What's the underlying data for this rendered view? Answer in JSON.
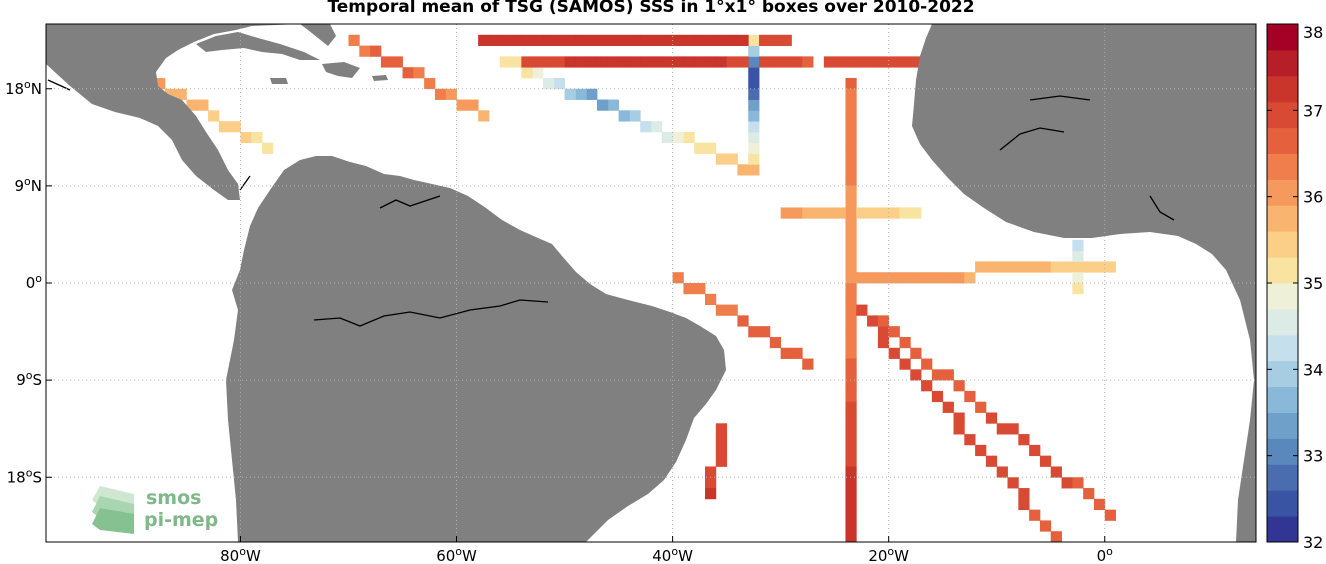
{
  "title": "Temporal mean of TSG (SAMOS) SSS in 1°x1° boxes over 2010-2022",
  "map": {
    "lon_range": [
      -98,
      14
    ],
    "lat_range": [
      -24,
      24
    ],
    "land_color": "#808080",
    "lon_ticks": [
      {
        "value": -80,
        "label": "80",
        "sup": "o",
        "suffix": "W"
      },
      {
        "value": -60,
        "label": "60",
        "sup": "o",
        "suffix": "W"
      },
      {
        "value": -40,
        "label": "40",
        "sup": "o",
        "suffix": "W"
      },
      {
        "value": -20,
        "label": "20",
        "sup": "o",
        "suffix": "W"
      },
      {
        "value": 0,
        "label": "0",
        "sup": "o",
        "suffix": ""
      }
    ],
    "lat_ticks": [
      {
        "value": 18,
        "label": "18",
        "sup": "o",
        "suffix": "N"
      },
      {
        "value": 9,
        "label": "9",
        "sup": "o",
        "suffix": "N"
      },
      {
        "value": 0,
        "label": "0",
        "sup": "o",
        "suffix": ""
      },
      {
        "value": -9,
        "label": "9",
        "sup": "o",
        "suffix": "S"
      },
      {
        "value": -18,
        "label": "18",
        "sup": "o",
        "suffix": "S"
      }
    ]
  },
  "colorbar": {
    "range": [
      32,
      38
    ],
    "ticks": [
      "38",
      "37",
      "36",
      "35",
      "34",
      "33",
      "32"
    ],
    "colors": [
      "#313695",
      "#3a54a4",
      "#4a6db0",
      "#5a87bc",
      "#6fa0ca",
      "#89b8d8",
      "#a7cde3",
      "#c5e0ec",
      "#dcebe6",
      "#eef0d8",
      "#f8e3a1",
      "#fbcf87",
      "#f9b56f",
      "#f59a5c",
      "#ef7e4c",
      "#e5603d",
      "#d84a33",
      "#c9342b",
      "#b71f28",
      "#a50026"
    ]
  },
  "logo": {
    "line1": "smos",
    "line2": "pi-mep",
    "color": "#7fb98a"
  },
  "chart_data": {
    "type": "heatmap",
    "title": "Temporal mean of TSG (SAMOS) SSS in 1°x1° boxes over 2010-2022",
    "xlabel": "",
    "ylabel": "",
    "xlim": [
      -98,
      14
    ],
    "ylim": [
      -24,
      24
    ],
    "zlim": [
      32,
      38
    ],
    "grid": true,
    "segments": [
      {
        "from": [
          -33,
          10
        ],
        "to": [
          -56,
          20
        ],
        "values": [
          35.8,
          35.5,
          35.2,
          35.0,
          34.6,
          34.2,
          33.6,
          33.2,
          33.8,
          34.5,
          35.0,
          35.3
        ]
      },
      {
        "from": [
          -33,
          11
        ],
        "to": [
          -33,
          22
        ],
        "values": [
          35.2,
          34.8,
          34.4,
          34.0,
          33.5,
          33.0,
          32.6,
          32.3,
          33.0,
          34.0,
          35.0
        ]
      },
      {
        "from": [
          -54,
          22
        ],
        "to": [
          -30,
          22
        ],
        "values": [
          37.1,
          37.2,
          37.3,
          37.4,
          37.3,
          37.2,
          37.1,
          37.0
        ]
      },
      {
        "from": [
          -54,
          20
        ],
        "to": [
          -28,
          20
        ],
        "values": [
          37.0,
          37.1,
          37.2,
          37.3,
          37.2,
          37.1,
          37.0,
          36.8
        ]
      },
      {
        "from": [
          -58,
          22
        ],
        "to": [
          -34,
          22
        ],
        "values": [
          37.1,
          37.2,
          37.3
        ]
      },
      {
        "from": [
          -26,
          20
        ],
        "to": [
          -12,
          20
        ],
        "values": [
          36.9,
          37.0,
          37.1,
          37.2
        ]
      },
      {
        "from": [
          -24,
          18
        ],
        "to": [
          -24,
          -24
        ],
        "values": [
          36.5,
          36.4,
          36.3,
          36.0,
          36.1,
          36.3,
          36.5,
          36.8,
          37.0,
          37.2,
          37.3
        ]
      },
      {
        "from": [
          -24,
          0
        ],
        "to": [
          0,
          1
        ],
        "values": [
          36.2,
          36.0,
          35.7,
          35.4
        ]
      },
      {
        "from": [
          -24,
          -2
        ],
        "to": [
          -5,
          -24
        ],
        "values": [
          36.8,
          37.0,
          37.1,
          37.0,
          36.9,
          36.7
        ]
      },
      {
        "from": [
          -24,
          -2
        ],
        "to": [
          0,
          -22
        ],
        "values": [
          36.4,
          36.6,
          36.8,
          36.9,
          36.7
        ]
      },
      {
        "from": [
          -40,
          0
        ],
        "to": [
          -28,
          -8
        ],
        "values": [
          36.4,
          36.5,
          36.7
        ]
      },
      {
        "from": [
          -36,
          -14
        ],
        "to": [
          -37,
          -20
        ],
        "values": [
          37.0,
          37.1
        ]
      },
      {
        "from": [
          -95,
          22
        ],
        "to": [
          -78,
          12
        ],
        "values": [
          35.8,
          36.0,
          35.6,
          35.2
        ]
      },
      {
        "from": [
          -70,
          22
        ],
        "to": [
          -58,
          15
        ],
        "values": [
          36.4,
          36.6,
          36.2,
          35.9
        ]
      },
      {
        "from": [
          -3,
          -1
        ],
        "to": [
          -3,
          3
        ],
        "values": [
          35.0,
          34.6,
          34.2
        ]
      },
      {
        "from": [
          -30,
          6
        ],
        "to": [
          -18,
          6
        ],
        "values": [
          36.0,
          35.8,
          35.5,
          35.2
        ]
      }
    ]
  }
}
